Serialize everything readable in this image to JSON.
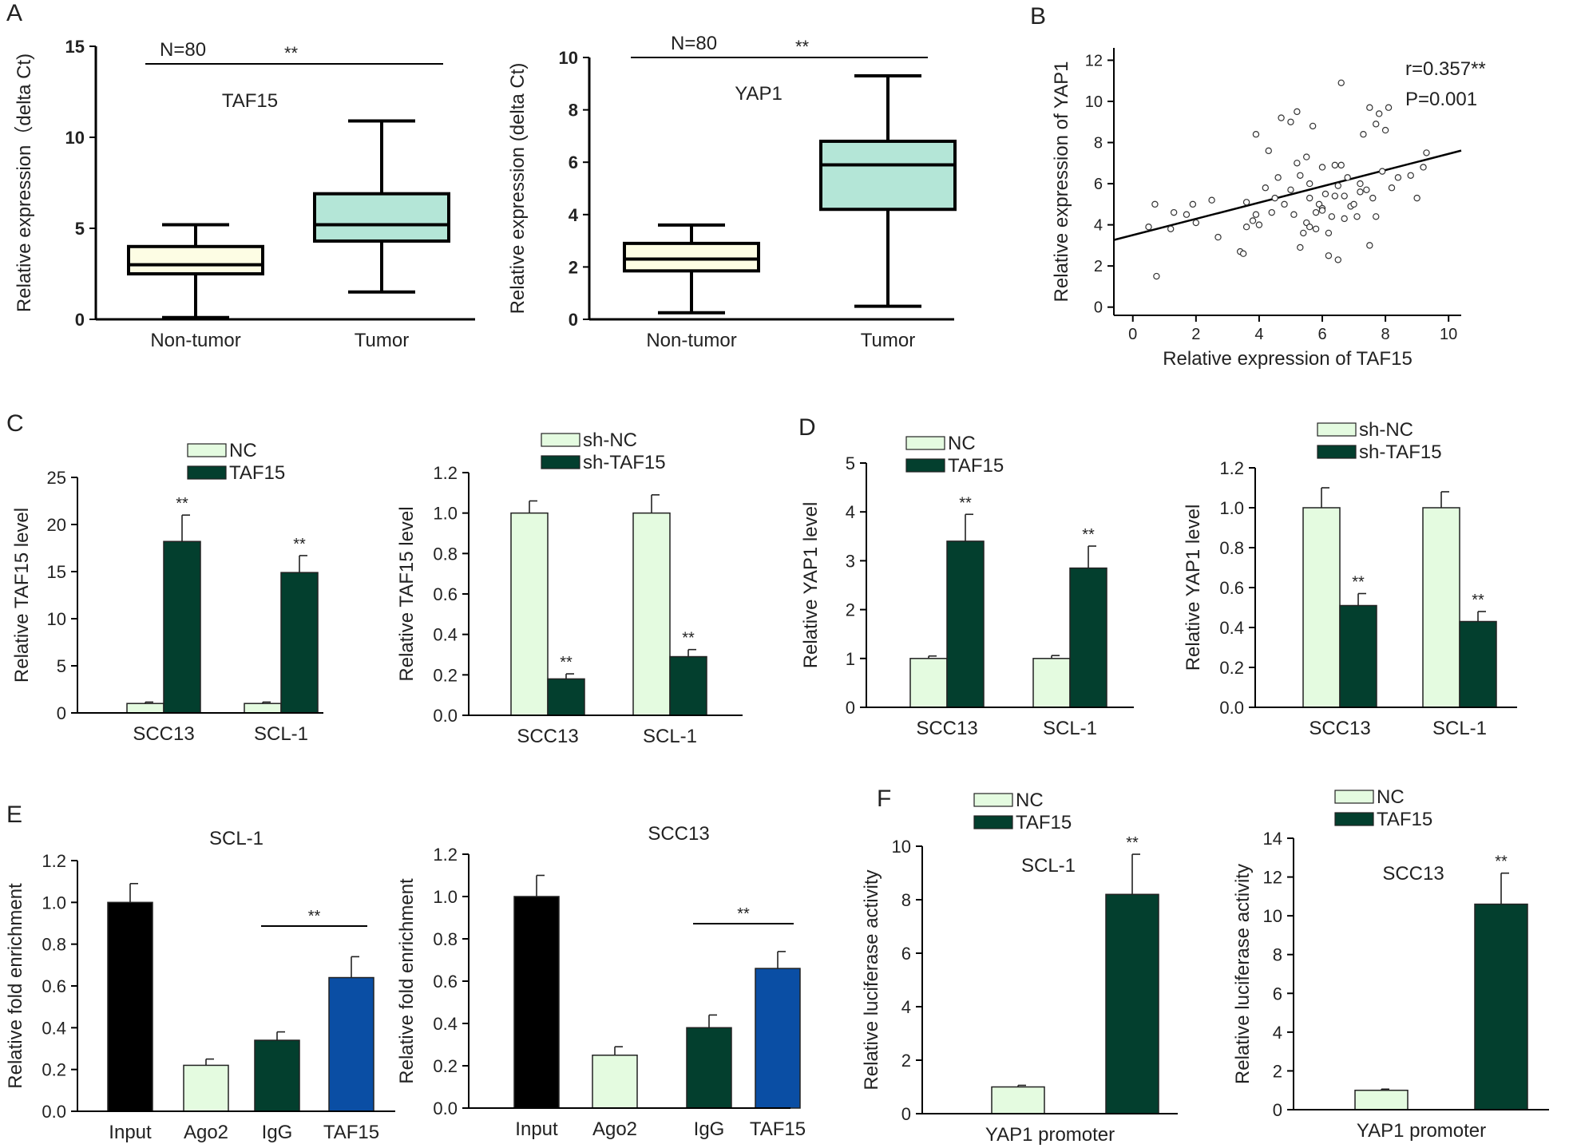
{
  "panel_letters": [
    "A",
    "B",
    "C",
    "D",
    "E",
    "F"
  ],
  "colors": {
    "nc": "#e4fbe0",
    "box_nontumor": "#fdfde4",
    "box_tumor": "#b4e6d7",
    "dark_green": "#033f2e",
    "black": "#000000",
    "blue": "#0a4ea4"
  },
  "chart_data": [
    {
      "id": "A1",
      "type": "box",
      "title": "TAF15",
      "annotation_n": "N=80",
      "significance": "**",
      "xlabel": "",
      "ylabel": "Relative expression（delta Ct)",
      "ylim": [
        0,
        15
      ],
      "yticks": [
        0,
        5,
        10,
        15
      ],
      "categories": [
        "Non-tumor",
        "Tumor"
      ],
      "box": [
        {
          "min": 0.1,
          "q1": 2.5,
          "median": 3.0,
          "q3": 4.0,
          "max": 5.2
        },
        {
          "min": 1.5,
          "q1": 4.3,
          "median": 5.2,
          "q3": 6.9,
          "max": 10.9
        }
      ]
    },
    {
      "id": "A2",
      "type": "box",
      "title": "YAP1",
      "annotation_n": "N=80",
      "significance": "**",
      "xlabel": "",
      "ylabel": "Relative expression (delta Ct)",
      "ylim": [
        0,
        10
      ],
      "yticks": [
        0,
        2,
        4,
        6,
        8,
        10
      ],
      "categories": [
        "Non-tumor",
        "Tumor"
      ],
      "box": [
        {
          "min": 0.25,
          "q1": 1.85,
          "median": 2.3,
          "q3": 2.9,
          "max": 3.6
        },
        {
          "min": 0.5,
          "q1": 4.2,
          "median": 5.9,
          "q3": 6.8,
          "max": 9.3
        }
      ]
    },
    {
      "id": "B",
      "type": "scatter",
      "xlabel": "Relative expression of TAF15",
      "ylabel": "Relative expression of YAP1",
      "stat_r": "r=0.357**",
      "stat_p": "P=0.001",
      "xlim": [
        -0.6,
        10.4
      ],
      "xticks": [
        0,
        2,
        4,
        6,
        8,
        10
      ],
      "ylim": [
        -0.4,
        12.6
      ],
      "yticks": [
        0,
        2,
        4,
        6,
        8,
        10,
        12
      ],
      "fit": {
        "intercept": 3.5,
        "slope": 0.395,
        "x_range": [
          -0.6,
          10.4
        ]
      },
      "points": [
        [
          0.5,
          3.9
        ],
        [
          0.7,
          5.0
        ],
        [
          0.75,
          1.5
        ],
        [
          1.2,
          3.8
        ],
        [
          1.3,
          4.6
        ],
        [
          1.7,
          4.5
        ],
        [
          1.9,
          5.0
        ],
        [
          2.0,
          4.1
        ],
        [
          2.5,
          5.2
        ],
        [
          2.7,
          3.4
        ],
        [
          3.4,
          2.7
        ],
        [
          3.5,
          2.6
        ],
        [
          3.6,
          3.9
        ],
        [
          3.6,
          5.1
        ],
        [
          3.8,
          4.2
        ],
        [
          3.9,
          4.5
        ],
        [
          4.0,
          4.0
        ],
        [
          4.2,
          5.8
        ],
        [
          4.3,
          7.6
        ],
        [
          4.4,
          4.6
        ],
        [
          4.5,
          5.3
        ],
        [
          4.6,
          6.3
        ],
        [
          4.7,
          9.2
        ],
        [
          4.8,
          5.0
        ],
        [
          5.0,
          5.7
        ],
        [
          5.0,
          9.0
        ],
        [
          5.1,
          4.5
        ],
        [
          5.2,
          7.0
        ],
        [
          5.3,
          6.4
        ],
        [
          5.3,
          2.9
        ],
        [
          5.4,
          3.6
        ],
        [
          5.5,
          7.3
        ],
        [
          5.5,
          4.1
        ],
        [
          5.6,
          6.0
        ],
        [
          5.6,
          3.9
        ],
        [
          5.6,
          5.3
        ],
        [
          5.7,
          8.8
        ],
        [
          5.8,
          4.6
        ],
        [
          5.8,
          3.8
        ],
        [
          5.9,
          5.0
        ],
        [
          6.0,
          4.8
        ],
        [
          6.0,
          6.8
        ],
        [
          6.0,
          4.7
        ],
        [
          6.1,
          5.5
        ],
        [
          6.2,
          3.6
        ],
        [
          6.2,
          2.5
        ],
        [
          6.3,
          4.4
        ],
        [
          6.4,
          6.9
        ],
        [
          6.4,
          5.4
        ],
        [
          6.5,
          5.9
        ],
        [
          6.5,
          2.3
        ],
        [
          6.6,
          10.9
        ],
        [
          6.6,
          6.9
        ],
        [
          6.7,
          4.3
        ],
        [
          6.7,
          5.4
        ],
        [
          6.8,
          6.3
        ],
        [
          6.9,
          4.9
        ],
        [
          7.0,
          5.0
        ],
        [
          7.1,
          4.4
        ],
        [
          7.2,
          6.0
        ],
        [
          7.2,
          5.6
        ],
        [
          7.3,
          8.4
        ],
        [
          7.4,
          5.7
        ],
        [
          7.5,
          9.7
        ],
        [
          7.5,
          3.0
        ],
        [
          7.6,
          5.3
        ],
        [
          7.7,
          4.4
        ],
        [
          7.7,
          8.9
        ],
        [
          7.8,
          9.4
        ],
        [
          7.9,
          6.6
        ],
        [
          8.0,
          8.6
        ],
        [
          8.1,
          9.7
        ],
        [
          8.2,
          5.8
        ],
        [
          8.4,
          6.3
        ],
        [
          8.8,
          6.4
        ],
        [
          9.0,
          5.3
        ],
        [
          9.2,
          6.8
        ],
        [
          9.3,
          7.5
        ],
        [
          3.9,
          8.4
        ],
        [
          5.2,
          9.5
        ]
      ]
    },
    {
      "id": "C1",
      "type": "bar",
      "ylabel": "Relative TAF15 level",
      "ylim": [
        0,
        25
      ],
      "yticks": [
        0,
        5,
        10,
        15,
        20,
        25
      ],
      "tick_decimals": 0,
      "categories": [
        "SCC13",
        "SCL-1"
      ],
      "legend": [
        "NC",
        "TAF15"
      ],
      "series": [
        {
          "name": "NC",
          "values": [
            1.0,
            1.0
          ],
          "errors": [
            0.15,
            0.15
          ],
          "sig": [
            "",
            ""
          ]
        },
        {
          "name": "TAF15",
          "values": [
            18.2,
            14.9
          ],
          "errors": [
            2.8,
            1.8
          ],
          "sig": [
            "**",
            "**"
          ]
        }
      ]
    },
    {
      "id": "C2",
      "type": "bar",
      "ylabel": "Relative TAF15 level",
      "ylim": [
        0,
        1.2
      ],
      "yticks": [
        0.0,
        0.2,
        0.4,
        0.6,
        0.8,
        1.0,
        1.2
      ],
      "tick_decimals": 1,
      "categories": [
        "SCC13",
        "SCL-1"
      ],
      "legend": [
        "sh-NC",
        "sh-TAF15"
      ],
      "series": [
        {
          "name": "sh-NC",
          "values": [
            1.0,
            1.0
          ],
          "errors": [
            0.06,
            0.09
          ],
          "sig": [
            "",
            ""
          ]
        },
        {
          "name": "sh-TAF15",
          "values": [
            0.18,
            0.29
          ],
          "errors": [
            0.025,
            0.035
          ],
          "sig": [
            "**",
            "**"
          ]
        }
      ]
    },
    {
      "id": "D1",
      "type": "bar",
      "ylabel": "Relative YAP1 level",
      "ylim": [
        0,
        5
      ],
      "yticks": [
        0,
        1,
        2,
        3,
        4,
        5
      ],
      "tick_decimals": 0,
      "categories": [
        "SCC13",
        "SCL-1"
      ],
      "legend": [
        "NC",
        "TAF15"
      ],
      "series": [
        {
          "name": "NC",
          "values": [
            1.0,
            1.0
          ],
          "errors": [
            0.05,
            0.06
          ],
          "sig": [
            "",
            ""
          ]
        },
        {
          "name": "TAF15",
          "values": [
            3.4,
            2.85
          ],
          "errors": [
            0.55,
            0.45
          ],
          "sig": [
            "**",
            "**"
          ]
        }
      ]
    },
    {
      "id": "D2",
      "type": "bar",
      "ylabel": "Relative YAP1 level",
      "ylim": [
        0,
        1.2
      ],
      "yticks": [
        0.0,
        0.2,
        0.4,
        0.6,
        0.8,
        1.0,
        1.2
      ],
      "tick_decimals": 1,
      "categories": [
        "SCC13",
        "SCL-1"
      ],
      "legend": [
        "sh-NC",
        "sh-TAF15"
      ],
      "series": [
        {
          "name": "sh-NC",
          "values": [
            1.0,
            1.0
          ],
          "errors": [
            0.1,
            0.08
          ],
          "sig": [
            "",
            ""
          ]
        },
        {
          "name": "sh-TAF15",
          "values": [
            0.51,
            0.43
          ],
          "errors": [
            0.06,
            0.05
          ],
          "sig": [
            "**",
            "**"
          ]
        }
      ]
    },
    {
      "id": "E1",
      "type": "bar",
      "title": "SCL-1",
      "ylabel": "Relative fold enrichment",
      "ylim": [
        0,
        1.2
      ],
      "yticks": [
        0.0,
        0.2,
        0.4,
        0.6,
        0.8,
        1.0,
        1.2
      ],
      "tick_decimals": 1,
      "categories": [
        "Input",
        "Ago2",
        "IgG",
        "TAF15"
      ],
      "values": [
        1.0,
        0.22,
        0.34,
        0.64
      ],
      "errors": [
        0.09,
        0.03,
        0.04,
        0.1
      ],
      "bar_colors": [
        "#000000",
        "#e4fbe0",
        "#033f2e",
        "#0a4ea4"
      ],
      "significance": "**",
      "sig_between": [
        2,
        3
      ]
    },
    {
      "id": "E2",
      "type": "bar",
      "title": "SCC13",
      "ylabel": "Relative fold enrichment",
      "ylim": [
        0,
        1.2
      ],
      "yticks": [
        0.0,
        0.2,
        0.4,
        0.6,
        0.8,
        1.0,
        1.2
      ],
      "tick_decimals": 1,
      "categories": [
        "Input",
        "Ago2",
        "IgG",
        "TAF15"
      ],
      "values": [
        1.0,
        0.25,
        0.38,
        0.66
      ],
      "errors": [
        0.1,
        0.04,
        0.06,
        0.08
      ],
      "bar_colors": [
        "#000000",
        "#e4fbe0",
        "#033f2e",
        "#0a4ea4"
      ],
      "significance": "**",
      "sig_between": [
        2,
        3
      ]
    },
    {
      "id": "F1",
      "type": "bar",
      "title": "SCL-1",
      "ylabel": "Relative luciferase activity",
      "ylim": [
        0,
        10
      ],
      "yticks": [
        0,
        2,
        4,
        6,
        8,
        10
      ],
      "tick_decimals": 0,
      "category_label": "YAP1  promoter",
      "legend": [
        "NC",
        "TAF15"
      ],
      "values": [
        1.0,
        8.2
      ],
      "errors": [
        0.06,
        1.5
      ],
      "sig": [
        "",
        "**"
      ]
    },
    {
      "id": "F2",
      "type": "bar",
      "title": "SCC13",
      "ylabel": "Relative luciferase activity",
      "ylim": [
        0,
        14
      ],
      "yticks": [
        0,
        2,
        4,
        6,
        8,
        10,
        12,
        14
      ],
      "tick_decimals": 0,
      "category_label": "YAP1  promoter",
      "legend": [
        "NC",
        "TAF15"
      ],
      "values": [
        1.0,
        10.6
      ],
      "errors": [
        0.06,
        1.6
      ],
      "sig": [
        "",
        "**"
      ]
    }
  ]
}
